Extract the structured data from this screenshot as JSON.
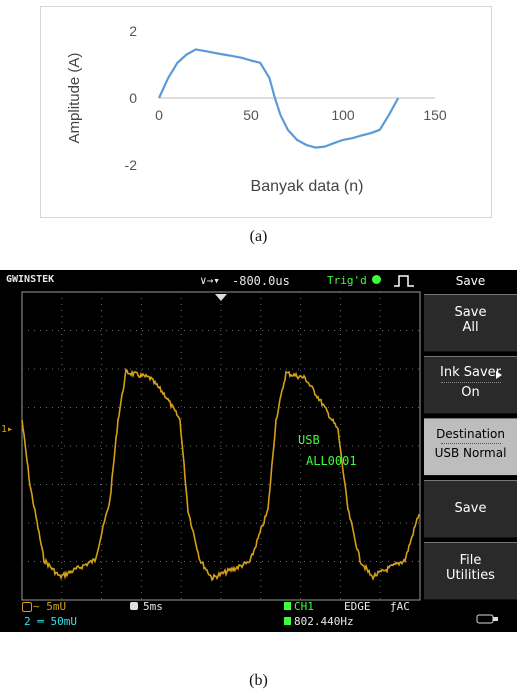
{
  "chart_data": {
    "type": "line",
    "xlabel": "Banyak data (n)",
    "ylabel": "Amplitude (A)",
    "xlim": [
      0,
      150
    ],
    "ylim": [
      -2,
      2
    ],
    "xticks": [
      "0",
      "50",
      "100",
      "150"
    ],
    "yticks": [
      "2",
      "0",
      "-2"
    ],
    "series": [
      {
        "color": "#5b9bd5",
        "x": [
          0,
          5,
          10,
          15,
          20,
          25,
          30,
          35,
          40,
          45,
          50,
          55,
          60,
          63,
          66,
          70,
          75,
          80,
          85,
          90,
          95,
          100,
          105,
          110,
          115,
          120,
          125,
          130
        ],
        "values": [
          0,
          0.6,
          1.05,
          1.3,
          1.45,
          1.4,
          1.35,
          1.3,
          1.25,
          1.2,
          1.12,
          1.05,
          0.6,
          0,
          -0.5,
          -0.95,
          -1.25,
          -1.4,
          -1.48,
          -1.45,
          -1.35,
          -1.25,
          -1.2,
          -1.12,
          -1.05,
          -0.95,
          -0.5,
          0
        ]
      }
    ]
  },
  "captions": {
    "a": "(a)",
    "b": "(b)"
  },
  "scope": {
    "brand": "GWINSTEK",
    "top_arrows": "∨→▾",
    "time_offset": "-800.0us",
    "trig": "Trig'd",
    "trace_color": "#d4a017",
    "ch_marker": "1▸",
    "usb_msg": [
      "USB",
      "ALL0001"
    ],
    "menu": {
      "title": "Save",
      "buttons": [
        {
          "lines": [
            "Save",
            "All"
          ]
        },
        {
          "lines": [
            "Ink Saver",
            "On"
          ]
        },
        {
          "lines": [
            "Destination",
            "USB Normal"
          ]
        },
        {
          "lines": [
            "Save"
          ]
        },
        {
          "lines": [
            "File",
            "Utilities"
          ]
        }
      ]
    },
    "bottom": {
      "ch1_scale": "∼ 5mU",
      "ch2_scale": "2 ═ 50mU",
      "timebase": "5ms",
      "trig_src": "CH1",
      "trig_mode": "EDGE",
      "coupling": "ƒAC",
      "freq": "802.440Hz"
    }
  }
}
